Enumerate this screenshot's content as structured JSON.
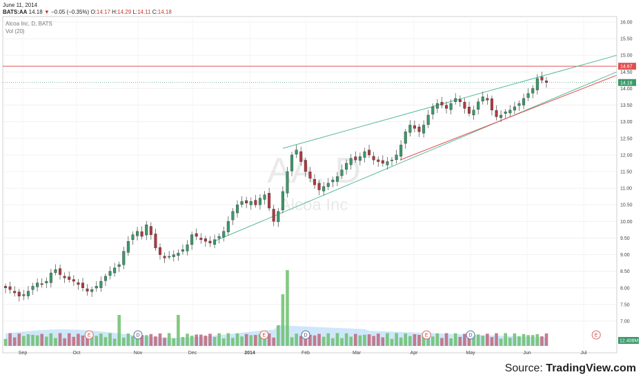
{
  "header": {
    "date": "June 11, 2014",
    "symbol": "BATS:AA",
    "last": "14.18",
    "arrow": "▼",
    "change": "−0.05 (−0.35%)",
    "o_label": "O:",
    "o": "14.17",
    "h_label": "H:",
    "h": "14.29",
    "l_label": "L:",
    "l": "14.11",
    "c_label": "C:",
    "c": "14.18"
  },
  "legend": {
    "name": "Alcoa Inc, D, BATS",
    "volume": "Vol (20)"
  },
  "watermark": {
    "ticker": "AA, D",
    "company": "Alcoa Inc"
  },
  "source": {
    "prefix": "Source: ",
    "brand": "TradingView.com"
  },
  "colors": {
    "up": "#3a9a6a",
    "down": "#b5383f",
    "channel": "#55b79a",
    "red_line": "#e05050",
    "vol_ma": "#a8d4f5",
    "vol_up": "#6cbf6c",
    "vol_down": "#c0667a"
  },
  "chart_data": {
    "type": "candlestick",
    "x_tick_labels": [
      "Sep",
      "Oct",
      "Nov",
      "Dec",
      "2014",
      "Feb",
      "Mar",
      "Apr",
      "May",
      "Jun",
      "Jul"
    ],
    "y_tick_labels": [
      "7.00",
      "7.50",
      "8.00",
      "8.50",
      "9.00",
      "9.50",
      "10.00",
      "10.50",
      "11.00",
      "11.50",
      "12.00",
      "12.50",
      "13.00",
      "13.50",
      "14.00",
      "14.50",
      "15.00",
      "15.50",
      "16.00"
    ],
    "ylim": [
      6.5,
      16.1
    ],
    "price_labels": [
      {
        "value": 14.67,
        "text": "14.67",
        "color": "#e05050"
      },
      {
        "value": 14.18,
        "text": "14.18",
        "color": "#3a9a6a"
      }
    ],
    "volume_label": "12.408M",
    "horizontal_line": 14.67,
    "last_price": 14.18,
    "event_markers": [
      {
        "label": "E",
        "month": "Oct",
        "day": 8
      },
      {
        "label": "D",
        "month": "Nov",
        "day": 1
      },
      {
        "label": "E",
        "month": "Jan",
        "day": 9
      },
      {
        "label": "D",
        "month": "Feb",
        "day": 1
      },
      {
        "label": "E",
        "month": "Apr",
        "day": 8
      },
      {
        "label": "D",
        "month": "May",
        "day": 1
      },
      {
        "label": "E",
        "month": "Jul",
        "day": 8
      }
    ],
    "series": [
      {
        "name": "close",
        "values": [
          8.0,
          7.95,
          7.85,
          7.75,
          7.8,
          7.9,
          8.05,
          8.15,
          8.1,
          8.2,
          8.45,
          8.55,
          8.4,
          8.3,
          8.25,
          8.2,
          8.1,
          8.0,
          7.9,
          7.95,
          8.05,
          8.2,
          8.35,
          8.5,
          8.6,
          8.7,
          9.1,
          9.4,
          9.6,
          9.7,
          9.55,
          9.9,
          9.6,
          9.2,
          9.0,
          8.9,
          8.95,
          9.0,
          9.05,
          9.15,
          9.3,
          9.6,
          9.55,
          9.45,
          9.4,
          9.35,
          9.45,
          9.55,
          9.7,
          10.0,
          10.3,
          10.5,
          10.6,
          10.55,
          10.6,
          10.5,
          10.7,
          10.8,
          10.4,
          10.0,
          10.3,
          10.9,
          11.5,
          12.0,
          12.15,
          11.8,
          11.5,
          11.3,
          11.1,
          10.95,
          11.05,
          11.15,
          11.25,
          11.35,
          11.55,
          11.75,
          11.9,
          11.85,
          11.95,
          12.1,
          12.0,
          11.85,
          11.8,
          11.75,
          11.8,
          11.85,
          12.0,
          12.3,
          12.7,
          12.9,
          12.8,
          12.7,
          12.9,
          13.2,
          13.45,
          13.55,
          13.5,
          13.4,
          13.55,
          13.7,
          13.6,
          13.4,
          13.25,
          13.35,
          13.6,
          13.75,
          13.65,
          13.35,
          13.15,
          13.2,
          13.3,
          13.35,
          13.45,
          13.55,
          13.7,
          13.85,
          14.0,
          14.3,
          14.25,
          14.18
        ]
      }
    ]
  }
}
